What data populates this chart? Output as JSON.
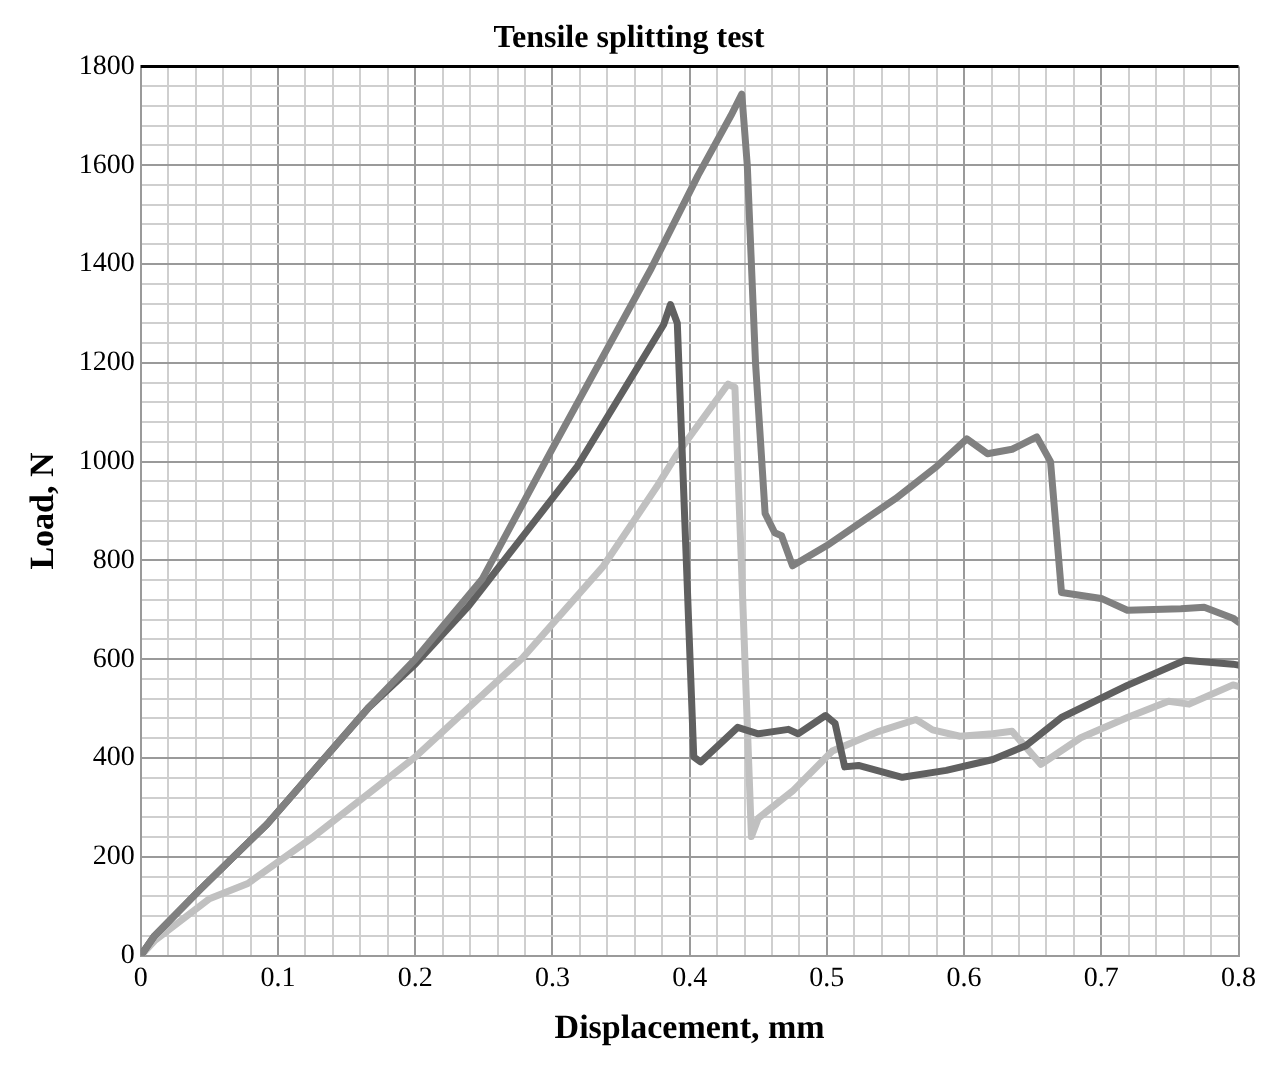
{
  "chart_data": {
    "type": "line",
    "title": "Tensile splitting test",
    "xlabel": "Displacement, mm",
    "ylabel": "Load, N",
    "xlim": [
      0,
      0.8
    ],
    "ylim": [
      0,
      1800
    ],
    "xticks": [
      0,
      {
        "value": 0.02,
        "label": null
      },
      {
        "value": 0.04,
        "label": null
      },
      {
        "value": 0.06,
        "label": null
      },
      {
        "value": 0.08,
        "label": null
      },
      0.1,
      {
        "value": 0.12,
        "label": null
      },
      {
        "value": 0.14,
        "label": null
      },
      {
        "value": 0.16,
        "label": null
      },
      {
        "value": 0.18,
        "label": null
      },
      0.2,
      {
        "value": 0.22,
        "label": null
      },
      {
        "value": 0.24,
        "label": null
      },
      {
        "value": 0.26,
        "label": null
      },
      {
        "value": 0.28,
        "label": null
      },
      0.3,
      {
        "value": 0.32,
        "label": null
      },
      {
        "value": 0.34,
        "label": null
      },
      {
        "value": 0.36,
        "label": null
      },
      {
        "value": 0.38,
        "label": null
      },
      0.4,
      {
        "value": 0.42,
        "label": null
      },
      {
        "value": 0.44,
        "label": null
      },
      {
        "value": 0.46,
        "label": null
      },
      {
        "value": 0.48,
        "label": null
      },
      0.5,
      {
        "value": 0.52,
        "label": null
      },
      {
        "value": 0.54,
        "label": null
      },
      {
        "value": 0.56,
        "label": null
      },
      {
        "value": 0.58,
        "label": null
      },
      0.6,
      {
        "value": 0.62,
        "label": null
      },
      {
        "value": 0.64,
        "label": null
      },
      {
        "value": 0.66,
        "label": null
      },
      {
        "value": 0.68,
        "label": null
      },
      0.7,
      {
        "value": 0.72,
        "label": null
      },
      {
        "value": 0.74,
        "label": null
      },
      {
        "value": 0.76,
        "label": null
      },
      {
        "value": 0.78,
        "label": null
      },
      0.8
    ],
    "yticks": [
      0,
      {
        "value": 40,
        "label": null
      },
      {
        "value": 80,
        "label": null
      },
      {
        "value": 120,
        "label": null
      },
      {
        "value": 160,
        "label": null
      },
      200,
      {
        "value": 240,
        "label": null
      },
      {
        "value": 280,
        "label": null
      },
      {
        "value": 320,
        "label": null
      },
      {
        "value": 360,
        "label": null
      },
      400,
      {
        "value": 440,
        "label": null
      },
      {
        "value": 480,
        "label": null
      },
      {
        "value": 520,
        "label": null
      },
      {
        "value": 560,
        "label": null
      },
      600,
      {
        "value": 640,
        "label": null
      },
      {
        "value": 680,
        "label": null
      },
      {
        "value": 720,
        "label": null
      },
      {
        "value": 760,
        "label": null
      },
      800,
      {
        "value": 840,
        "label": null
      },
      {
        "value": 880,
        "label": null
      },
      {
        "value": 920,
        "label": null
      },
      {
        "value": 960,
        "label": null
      },
      1000,
      {
        "value": 1040,
        "label": null
      },
      {
        "value": 1080,
        "label": null
      },
      {
        "value": 1120,
        "label": null
      },
      {
        "value": 1160,
        "label": null
      },
      1200,
      {
        "value": 1240,
        "label": null
      },
      {
        "value": 1280,
        "label": null
      },
      {
        "value": 1320,
        "label": null
      },
      {
        "value": 1360,
        "label": null
      },
      1400,
      {
        "value": 1440,
        "label": null
      },
      {
        "value": 1480,
        "label": null
      },
      {
        "value": 1520,
        "label": null
      },
      {
        "value": 1560,
        "label": null
      },
      1600,
      {
        "value": 1640,
        "label": null
      },
      {
        "value": 1680,
        "label": null
      },
      {
        "value": 1720,
        "label": null
      },
      {
        "value": 1760,
        "label": null
      },
      1800
    ],
    "grid": true,
    "legend": false,
    "marker": "none",
    "line_style": "solid",
    "series": [
      {
        "color": "#808080",
        "x": [
          0,
          0.01,
          0.043,
          0.092,
          0.166,
          0.2,
          0.249,
          0.298,
          0.372,
          0.406,
          0.43,
          0.438,
          0.442,
          0.448,
          0.455,
          0.462,
          0.467,
          0.475,
          0.5,
          0.55,
          0.58,
          0.602,
          0.617,
          0.635,
          0.653,
          0.663,
          0.671,
          0.7,
          0.719,
          0.758,
          0.775,
          0.796,
          0.8
        ],
        "values": [
          0,
          40,
          133,
          266,
          502,
          600,
          763,
          1016,
          1391,
          1579,
          1700,
          1744,
          1600,
          1200,
          895,
          856,
          850,
          789,
          830,
          925,
          990,
          1046,
          1016,
          1025,
          1050,
          1000,
          735,
          723,
          699,
          702,
          705,
          683,
          675
        ]
      },
      {
        "color": "#606060",
        "x": [
          0,
          0.01,
          0.043,
          0.092,
          0.166,
          0.2,
          0.239,
          0.318,
          0.381,
          0.386,
          0.391,
          0.403,
          0.408,
          0.435,
          0.45,
          0.472,
          0.479,
          0.499,
          0.506,
          0.513,
          0.523,
          0.555,
          0.587,
          0.621,
          0.645,
          0.671,
          0.719,
          0.761,
          0.796,
          0.8
        ],
        "values": [
          0,
          40,
          133,
          266,
          502,
          590,
          708,
          990,
          1277,
          1318,
          1280,
          402,
          392,
          462,
          449,
          458,
          449,
          486,
          470,
          382,
          385,
          361,
          375,
          397,
          425,
          482,
          547,
          598,
          590,
          588
        ]
      },
      {
        "color": "#c0c0c0",
        "x": [
          0,
          0.01,
          0.05,
          0.078,
          0.126,
          0.2,
          0.278,
          0.337,
          0.376,
          0.391,
          0.428,
          0.433,
          0.445,
          0.45,
          0.475,
          0.504,
          0.538,
          0.565,
          0.577,
          0.597,
          0.621,
          0.635,
          0.656,
          0.685,
          0.719,
          0.749,
          0.764,
          0.796,
          0.8
        ],
        "values": [
          0,
          30,
          115,
          146,
          241,
          402,
          602,
          788,
          949,
          1016,
          1157,
          1150,
          241,
          278,
          333,
          414,
          454,
          478,
          457,
          444,
          449,
          454,
          387,
          441,
          482,
          515,
          509,
          548,
          545
        ]
      }
    ]
  }
}
